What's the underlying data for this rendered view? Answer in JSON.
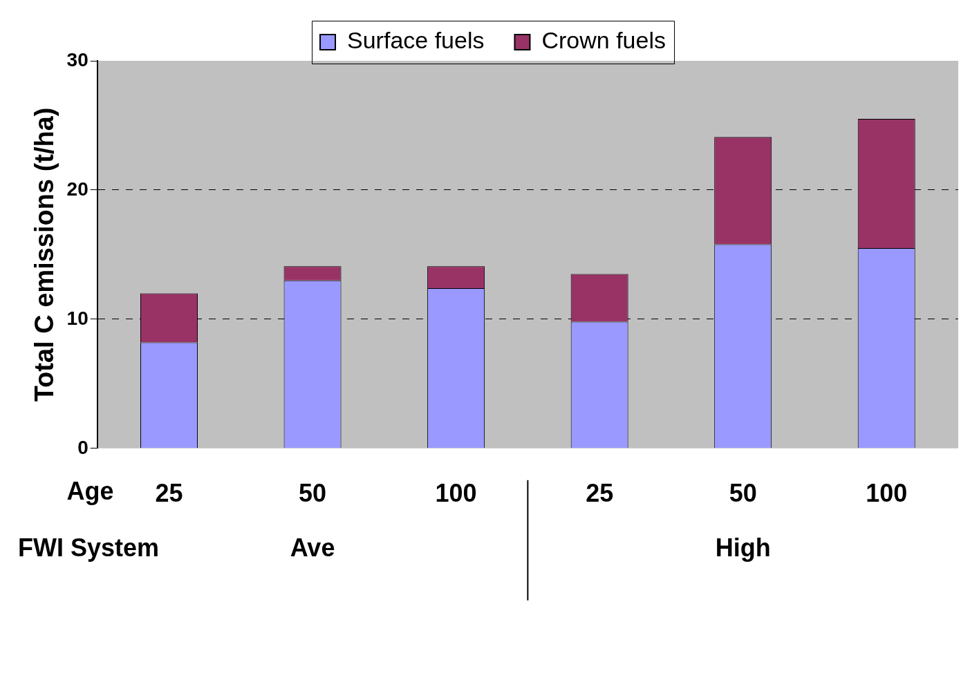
{
  "chart_data": {
    "type": "bar",
    "stacked": true,
    "ylabel": "Total C emissions (t/ha)",
    "xlabel": "Age",
    "categories": [
      "25",
      "50",
      "100",
      "25",
      "50",
      "100"
    ],
    "series": [
      {
        "name": "Surface fuels",
        "color": "#9999ff",
        "values": [
          8.2,
          13,
          12.4,
          9.8,
          15.8,
          15.5
        ]
      },
      {
        "name": "Crown fuels",
        "color": "#993366",
        "values": [
          3.8,
          1.1,
          1.7,
          3.7,
          8.3,
          10
        ]
      }
    ],
    "ylim": [
      0,
      30
    ],
    "yticks": [
      0,
      10,
      20,
      30
    ],
    "grid": "y",
    "legend": "top",
    "annotations": [
      "FWI System",
      "Ave",
      "High"
    ]
  }
}
